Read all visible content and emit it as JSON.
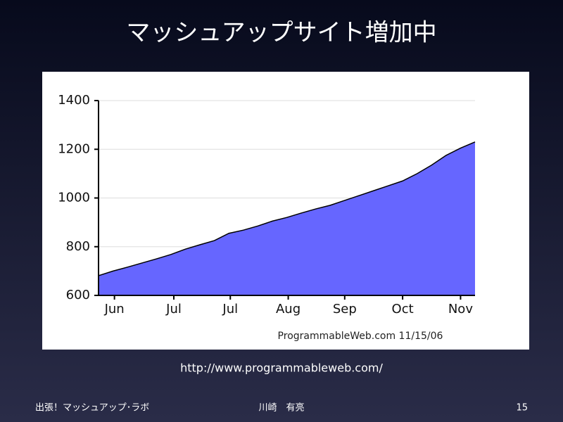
{
  "slide": {
    "title": "マッシュアップサイト増加中",
    "url": "http://www.programmableweb.com/",
    "footer_left": "出張！マッシュアップ･ラボ",
    "footer_center": "川崎　有亮",
    "page_number": "15"
  },
  "chart_data": {
    "type": "area",
    "color": "#6666ff",
    "line_color": "#000000",
    "grid": true,
    "annotation": "ProgrammableWeb.com 11/15/06",
    "x": [
      0,
      1,
      2,
      3,
      4,
      5,
      6,
      7,
      8,
      9,
      10,
      11,
      12,
      13,
      14,
      15,
      16,
      17,
      18,
      19,
      20,
      21,
      22,
      23,
      24,
      25,
      26
    ],
    "values": [
      681,
      700,
      716,
      733,
      750,
      768,
      790,
      808,
      825,
      855,
      868,
      885,
      905,
      920,
      938,
      955,
      970,
      990,
      1010,
      1030,
      1050,
      1070,
      1100,
      1135,
      1175,
      1205,
      1230
    ],
    "xlim": [
      0,
      26
    ],
    "xticks": [
      {
        "value": 1.1,
        "label": "Jun"
      },
      {
        "value": 5.2,
        "label": "Jul"
      },
      {
        "value": 9.1,
        "label": "Jul"
      },
      {
        "value": 13.1,
        "label": "Aug"
      },
      {
        "value": 17.0,
        "label": "Sep"
      },
      {
        "value": 21.0,
        "label": "Oct"
      },
      {
        "value": 25.0,
        "label": "Nov"
      }
    ],
    "ylim": [
      600,
      1400
    ],
    "yticks": [
      600,
      800,
      1000,
      1200,
      1400
    ]
  }
}
